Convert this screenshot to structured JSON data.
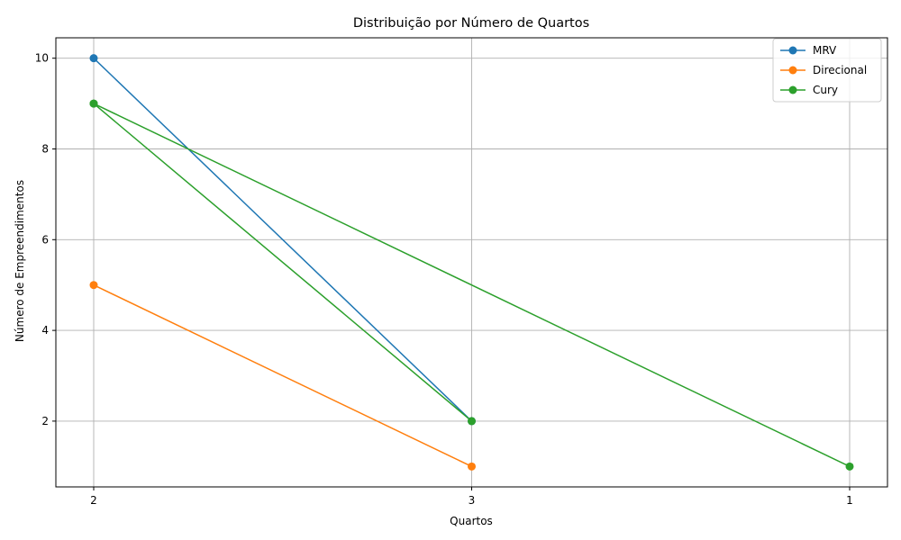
{
  "chart_data": {
    "type": "line",
    "title": "Distribuição por Número de Quartos",
    "xlabel": "Quartos",
    "ylabel": "Número de Empreendimentos",
    "categories": [
      "2",
      "3",
      "1"
    ],
    "ylim": [
      0.55,
      10.45
    ],
    "yticks": [
      2,
      4,
      6,
      8,
      10
    ],
    "grid": true,
    "legend_position": "top-right",
    "series": [
      {
        "name": "MRV",
        "color": "#1f77b4",
        "points": [
          {
            "x": "2",
            "y": 10
          },
          {
            "x": "3",
            "y": 2
          }
        ]
      },
      {
        "name": "Direcional",
        "color": "#ff7f0e",
        "points": [
          {
            "x": "2",
            "y": 5
          },
          {
            "x": "3",
            "y": 1
          }
        ]
      },
      {
        "name": "Cury",
        "color": "#2ca02c",
        "points": [
          {
            "x": "2",
            "y": 9
          },
          {
            "x": "3",
            "y": 2
          },
          {
            "x": "2",
            "y": 9
          },
          {
            "x": "1",
            "y": 1
          }
        ]
      }
    ]
  }
}
